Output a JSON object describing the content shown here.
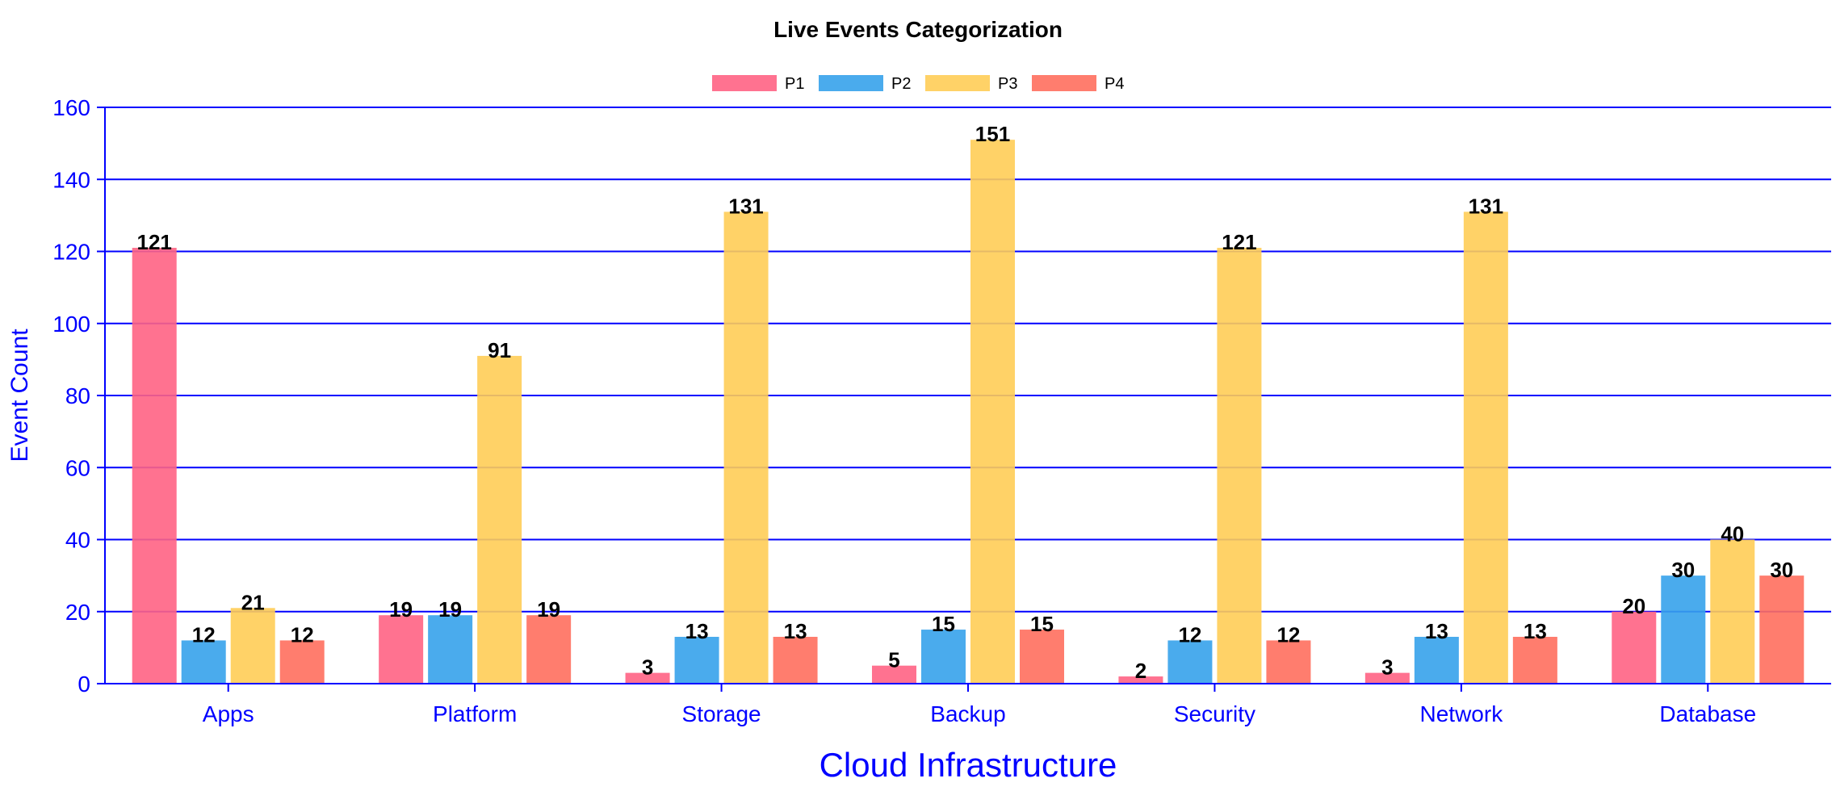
{
  "chart_data": {
    "type": "bar",
    "title": "Live Events Categorization",
    "xlabel": "Cloud Infrastructure",
    "ylabel": "Event Count",
    "categories": [
      "Apps",
      "Platform",
      "Storage",
      "Backup",
      "Security",
      "Network",
      "Database"
    ],
    "series": [
      {
        "name": "P1",
        "color": "#ff6384",
        "values": [
          121,
          19,
          3,
          5,
          2,
          3,
          20
        ]
      },
      {
        "name": "P2",
        "color": "#36a2eb",
        "values": [
          12,
          19,
          13,
          15,
          12,
          13,
          30
        ]
      },
      {
        "name": "P3",
        "color": "#ffcd56",
        "values": [
          21,
          91,
          131,
          151,
          121,
          131,
          40
        ]
      },
      {
        "name": "P4",
        "color": "#ff6f5e",
        "values": [
          12,
          19,
          13,
          15,
          12,
          13,
          30
        ]
      }
    ],
    "ylim": [
      0,
      160
    ],
    "yticks": [
      "0",
      "20",
      "40",
      "60",
      "80",
      "100",
      "120",
      "140",
      "160"
    ],
    "grid": true,
    "legend_position": "top-center",
    "data_labels": true,
    "axis_color": "#0000ff"
  }
}
